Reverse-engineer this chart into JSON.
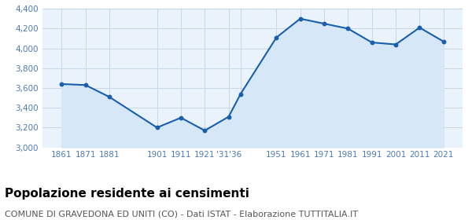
{
  "years": [
    1861,
    1871,
    1881,
    1901,
    1911,
    1921,
    1931,
    1936,
    1951,
    1961,
    1971,
    1981,
    1991,
    2001,
    2011,
    2021
  ],
  "population": [
    3640,
    3630,
    3510,
    3200,
    3300,
    3170,
    3310,
    3540,
    4110,
    4300,
    4250,
    4200,
    4060,
    4040,
    4210,
    4070
  ],
  "xtick_positions": [
    1861,
    1871,
    1881,
    1901,
    1911,
    1921,
    1931,
    1951,
    1961,
    1971,
    1981,
    1991,
    2001,
    2011,
    2021
  ],
  "xtick_labels": [
    "1861",
    "1871",
    "1881",
    "1901",
    "1911",
    "1921",
    "'31'36",
    "1951",
    "1961",
    "1971",
    "1981",
    "1991",
    "2001",
    "2011",
    "2021"
  ],
  "ylim": [
    3000,
    4400
  ],
  "yticks": [
    3000,
    3200,
    3400,
    3600,
    3800,
    4000,
    4200,
    4400
  ],
  "line_color": "#1a5fad",
  "fill_color": "#d6e8f7",
  "marker_color": "#1a5fad",
  "background_color": "#eaf3fb",
  "grid_color": "#c5d8e8",
  "title": "Popolazione residente ai censimenti",
  "subtitle": "COMUNE DI GRAVEDONA ED UNITI (CO) - Dati ISTAT - Elaborazione TUTTITALIA.IT",
  "title_fontsize": 11,
  "subtitle_fontsize": 8,
  "tick_label_color": "#4d7ab5",
  "tick_fontsize": 7.5,
  "xlim": [
    1853,
    2029
  ]
}
